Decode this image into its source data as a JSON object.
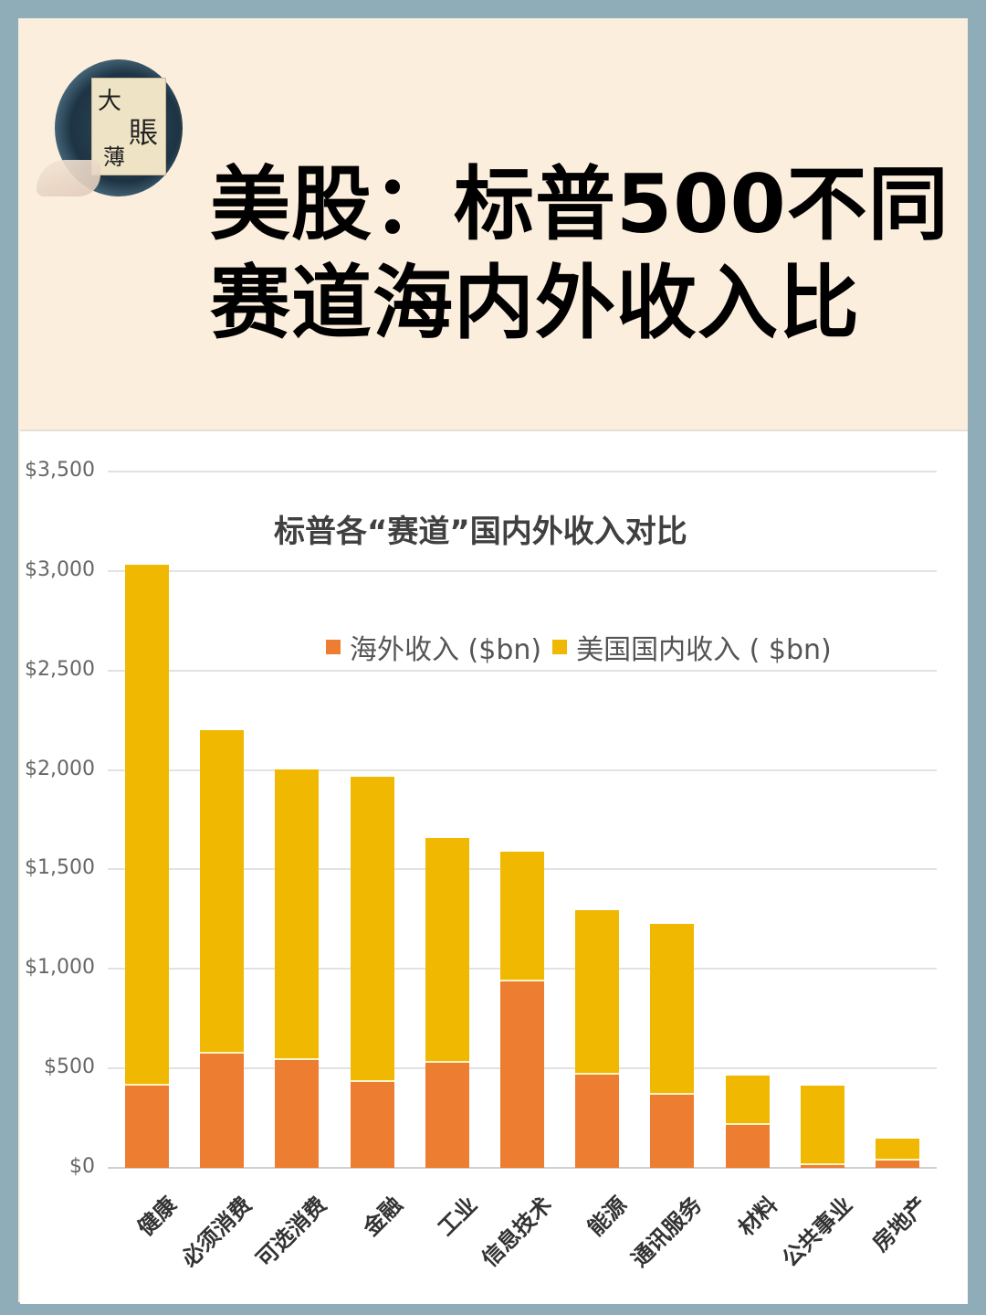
{
  "header": {
    "logo": {
      "chars": [
        "大",
        "賬",
        "薄"
      ],
      "icon": "ink-circle-logo"
    },
    "title_line1": "美股：标普500不同",
    "title_line2": "赛道海内外收入比"
  },
  "colors": {
    "background_border": "#8fadb8",
    "header_bg": "#fbeedd",
    "overseas": "#ed7d31",
    "domestic": "#f0b800",
    "gridline": "#e2e2e2"
  },
  "chart_data": {
    "type": "bar",
    "stacked": true,
    "title": "标普各“赛道”国内外收入对比",
    "xlabel": "",
    "ylabel": "",
    "ylim": [
      0,
      3500
    ],
    "yticks": [
      0,
      500,
      1000,
      1500,
      2000,
      2500,
      3000,
      3500
    ],
    "ytick_labels": [
      "$0",
      "$500",
      "$1,000",
      "$1,500",
      "$2,000",
      "$2,500",
      "$3,000",
      "$3,500"
    ],
    "grid": true,
    "legend_position": "top-center",
    "categories": [
      "健康",
      "必须消费",
      "可选消费",
      "金融",
      "工业",
      "信息技术",
      "能源",
      "通讯服务",
      "材料",
      "公共事业",
      "房地产"
    ],
    "series": [
      {
        "name": "海外收入 ($bn)",
        "color": "#ed7d31",
        "values": [
          413,
          574,
          542,
          432,
          528,
          937,
          468,
          367,
          216,
          14,
          37
        ]
      },
      {
        "name": "美国国内收入 ( $bn)",
        "color": "#f0b800",
        "values": [
          2618,
          1626,
          1460,
          1534,
          1130,
          652,
          827,
          859,
          248,
          399,
          110
        ]
      }
    ],
    "totals": [
      3031,
      2200,
      2002,
      1966,
      1658,
      1589,
      1295,
      1226,
      464,
      413,
      147
    ]
  }
}
